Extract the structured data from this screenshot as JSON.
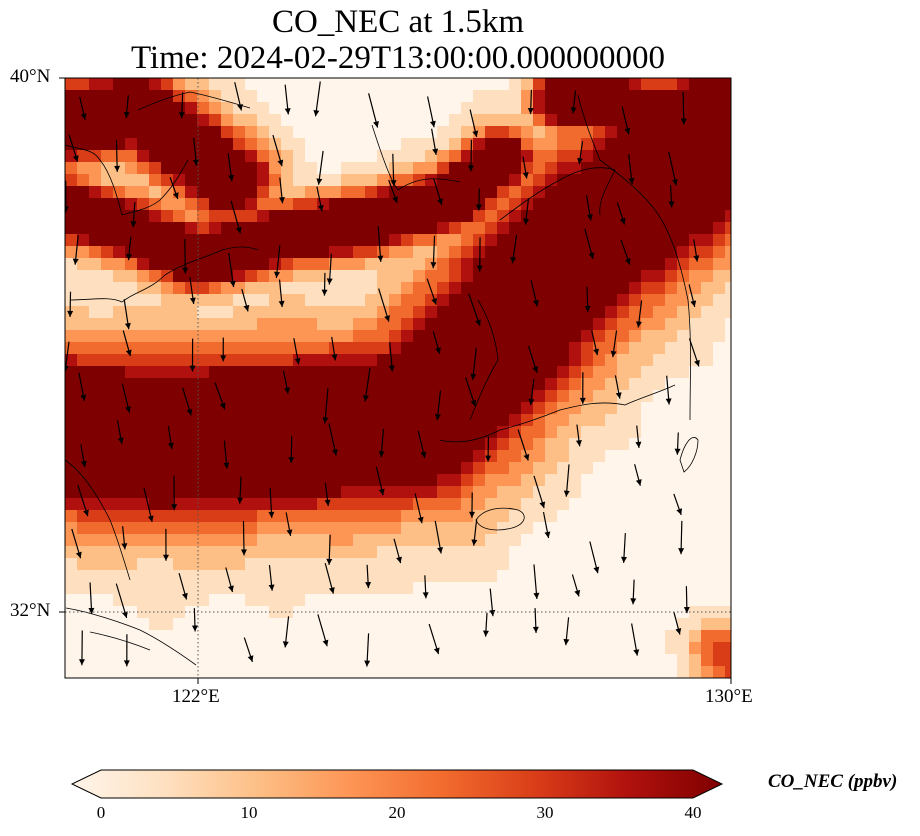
{
  "title_line1": "CO_NEC at 1.5km",
  "title_line2": "Time: 2024-02-29T13:00:00.000000000",
  "map": {
    "lat_labels": [
      "40°N",
      "32°N"
    ],
    "lon_labels": [
      "122°E",
      "130°E"
    ],
    "extent": {
      "lon_min": 120,
      "lon_max": 130,
      "lat_min": 31,
      "lat_max": 40
    },
    "variable": "CO_NEC",
    "level": "1.5km"
  },
  "colorbar": {
    "label": "CO_NEC (ppbv)",
    "ticks": [
      "0",
      "10",
      "20",
      "30",
      "40"
    ],
    "vmin": 0,
    "vmax": 40,
    "colors": [
      "#fff5eb",
      "#fee0c0",
      "#fdbf86",
      "#fd9555",
      "#f26b2e",
      "#d93d18",
      "#b0110e",
      "#7f0000"
    ]
  }
}
